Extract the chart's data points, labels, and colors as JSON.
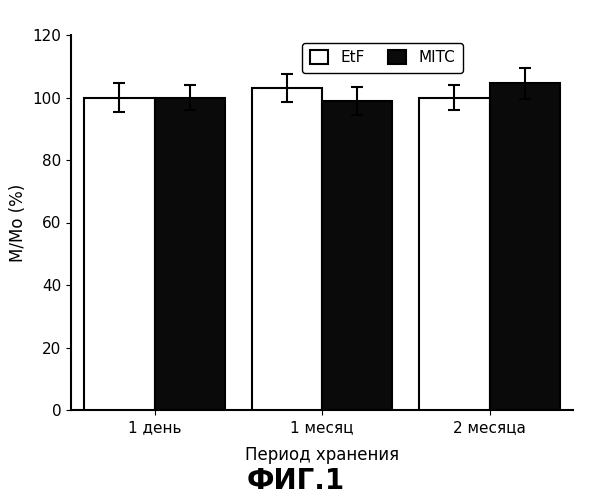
{
  "groups": [
    "1 день",
    "1 месяц",
    "2 месяца"
  ],
  "etf_values": [
    100.0,
    103.0,
    100.0
  ],
  "mitc_values": [
    100.0,
    99.0,
    104.5
  ],
  "etf_errors": [
    4.5,
    4.5,
    4.0
  ],
  "mitc_errors": [
    4.0,
    4.5,
    5.0
  ],
  "etf_color": "white",
  "mitc_color": "#0a0a0a",
  "bar_edgecolor": "black",
  "bar_width": 0.42,
  "ylim": [
    0,
    120
  ],
  "yticks": [
    0,
    20,
    40,
    60,
    80,
    100,
    120
  ],
  "ylabel": "M/Mo (%)",
  "xlabel": "Период хранения",
  "legend_etf": "EtF",
  "legend_mitc": "MITC",
  "figure_title": "ФИГ.1",
  "background_color": "white",
  "group_positions": [
    1,
    2,
    3
  ]
}
